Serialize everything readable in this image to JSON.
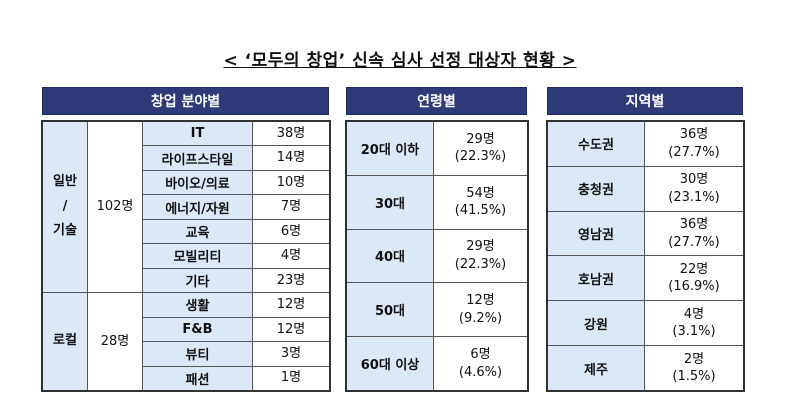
{
  "title": "< ‘모두의 창업’ 신속 심사 선정 대상자 현황 >",
  "field": {
    "header": "창업 분야별",
    "groups": [
      {
        "name_lines": [
          "일반",
          "/",
          "기술"
        ],
        "total": "102명",
        "items": [
          {
            "label": "IT",
            "count": "38명"
          },
          {
            "label": "라이프스타일",
            "count": "14명"
          },
          {
            "label": "바이오/의료",
            "count": "10명"
          },
          {
            "label": "에너지/자원",
            "count": "7명"
          },
          {
            "label": "교육",
            "count": "6명"
          },
          {
            "label": "모빌리티",
            "count": "4명"
          },
          {
            "label": "기타",
            "count": "23명"
          }
        ]
      },
      {
        "name_lines": [
          "로컬"
        ],
        "total": "28명",
        "items": [
          {
            "label": "생활",
            "count": "12명"
          },
          {
            "label": "F&B",
            "count": "12명"
          },
          {
            "label": "뷰티",
            "count": "3명"
          },
          {
            "label": "패션",
            "count": "1명"
          }
        ]
      }
    ]
  },
  "age": {
    "header": "연령별",
    "rows": [
      {
        "label": "20대 이하",
        "count": "29명",
        "pct": "(22.3%)"
      },
      {
        "label": "30대",
        "count": "54명",
        "pct": "(41.5%)"
      },
      {
        "label": "40대",
        "count": "29명",
        "pct": "(22.3%)"
      },
      {
        "label": "50대",
        "count": "12명",
        "pct": "(9.2%)"
      },
      {
        "label": "60대 이상",
        "count": "6명",
        "pct": "(4.6%)"
      }
    ]
  },
  "region": {
    "header": "지역별",
    "rows": [
      {
        "label": "수도권",
        "count": "36명",
        "pct": "(27.7%)"
      },
      {
        "label": "충청권",
        "count": "30명",
        "pct": "(23.1%)"
      },
      {
        "label": "영남권",
        "count": "36명",
        "pct": "(27.7%)"
      },
      {
        "label": "호남권",
        "count": "22명",
        "pct": "(16.9%)"
      },
      {
        "label": "강원",
        "count": "4명",
        "pct": "(3.1%)"
      },
      {
        "label": "제주",
        "count": "2명",
        "pct": "(1.5%)"
      }
    ]
  },
  "colors": {
    "header_bg": "#2e3b78",
    "label_bg": "#dde8f7"
  }
}
